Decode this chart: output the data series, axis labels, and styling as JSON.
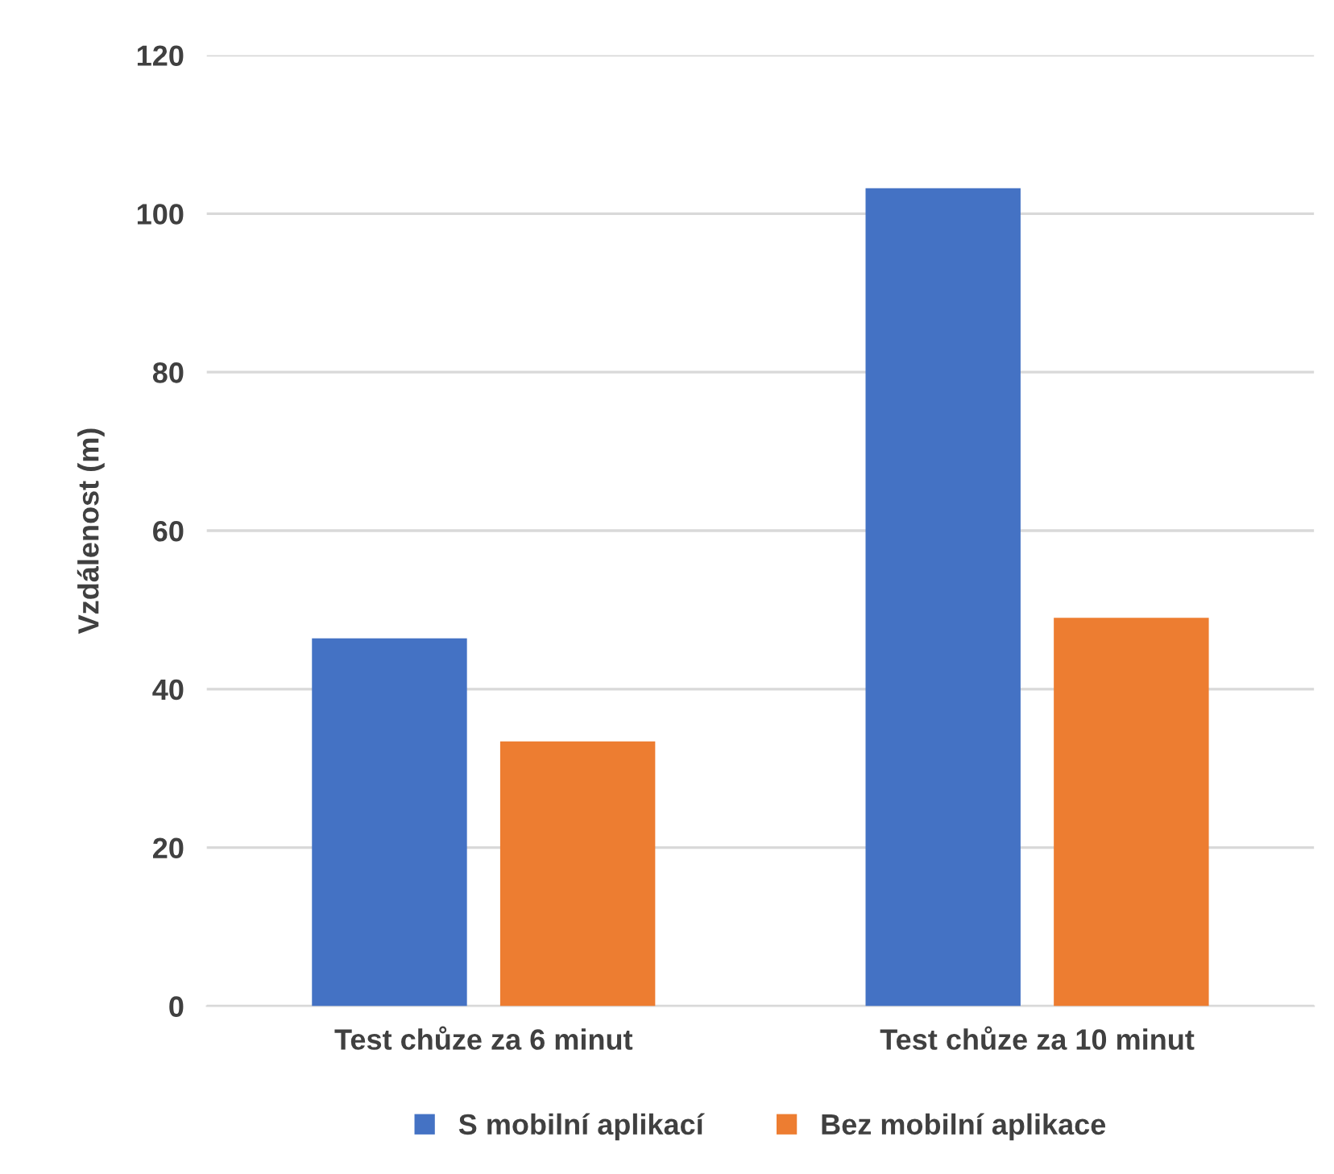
{
  "chart_data": {
    "type": "bar",
    "ylabel": "Vzdálenost (m)",
    "categories": [
      "Test chůze za 6 minut",
      "Test chůze za 10 minut"
    ],
    "series": [
      {
        "name": "S mobilní aplikací",
        "color": "#4472c4",
        "values": [
          46.4,
          103.2
        ]
      },
      {
        "name": "Bez mobilní aplikace",
        "color": "#ed7d31",
        "values": [
          33.4,
          49.0
        ]
      }
    ],
    "ylim": [
      0,
      120
    ],
    "yticks": [
      0,
      20,
      40,
      60,
      80,
      100,
      120
    ],
    "grid": "y",
    "legend": "bottom"
  }
}
